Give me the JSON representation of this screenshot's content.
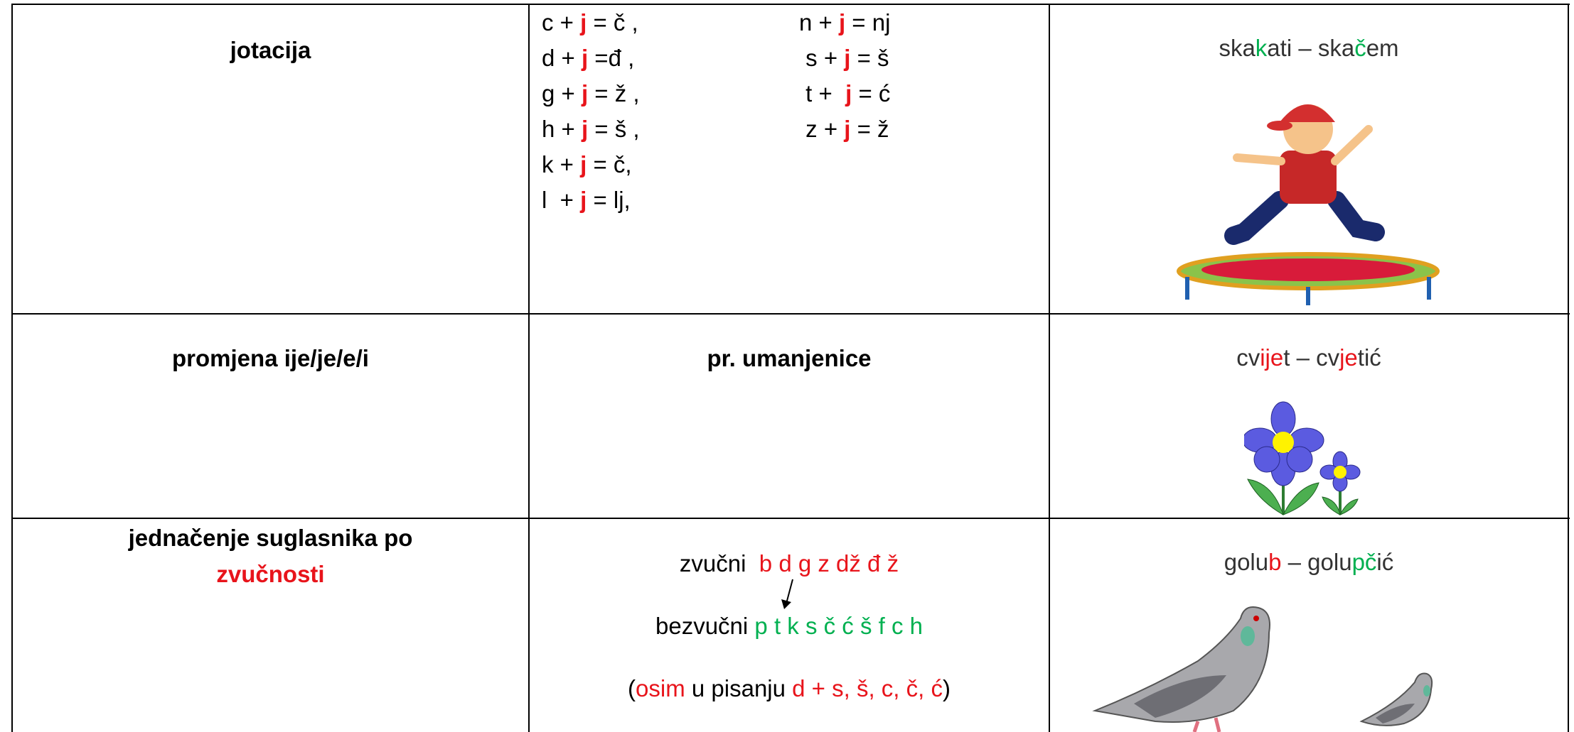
{
  "table": {
    "rows": [
      [
        {
          "lines": [
            {
              "runs": [
                {
                  "text": "jotacija"
                }
              ]
            }
          ]
        },
        {
          "columns": [
            {
              "lines": [
                {
                  "runs": [
                    {
                      "text": "c + "
                    },
                    {
                      "text": "j",
                      "color": "#e8141b",
                      "bold": true
                    },
                    {
                      "text": " = č ,"
                    }
                  ]
                },
                {
                  "runs": [
                    {
                      "text": "d + "
                    },
                    {
                      "text": "j",
                      "color": "#e8141b",
                      "bold": true
                    },
                    {
                      "text": " =đ ,"
                    }
                  ]
                },
                {
                  "runs": [
                    {
                      "text": "g + "
                    },
                    {
                      "text": "j",
                      "color": "#e8141b",
                      "bold": true
                    },
                    {
                      "text": " = ž ,"
                    }
                  ]
                },
                {
                  "runs": [
                    {
                      "text": "h + "
                    },
                    {
                      "text": "j",
                      "color": "#e8141b",
                      "bold": true
                    },
                    {
                      "text": " = š ,"
                    }
                  ]
                },
                {
                  "runs": [
                    {
                      "text": "k + "
                    },
                    {
                      "text": "j",
                      "color": "#e8141b",
                      "bold": true
                    },
                    {
                      "text": " = č,"
                    }
                  ]
                },
                {
                  "runs": [
                    {
                      "text": "l  + "
                    },
                    {
                      "text": "j",
                      "color": "#e8141b",
                      "bold": true
                    },
                    {
                      "text": " = lj,"
                    }
                  ]
                }
              ]
            },
            {
              "lines": [
                {
                  "runs": [
                    {
                      "text": "n + "
                    },
                    {
                      "text": "j",
                      "color": "#e8141b",
                      "bold": true
                    },
                    {
                      "text": " = nj"
                    }
                  ]
                },
                {
                  "runs": [
                    {
                      "text": " s + "
                    },
                    {
                      "text": "j",
                      "color": "#e8141b",
                      "bold": true
                    },
                    {
                      "text": " = š"
                    }
                  ]
                },
                {
                  "runs": [
                    {
                      "text": " t +  "
                    },
                    {
                      "text": "j",
                      "color": "#e8141b",
                      "bold": true
                    },
                    {
                      "text": " = ć"
                    }
                  ]
                },
                {
                  "runs": [
                    {
                      "text": " z + "
                    },
                    {
                      "text": "j",
                      "color": "#e8141b",
                      "bold": true
                    },
                    {
                      "text": " = ž"
                    }
                  ]
                }
              ]
            }
          ]
        },
        {
          "lines": [
            {
              "runs": [
                {
                  "text": "ska"
                },
                {
                  "text": "k",
                  "color": "#00b050"
                },
                {
                  "text": "ati – ska"
                },
                {
                  "text": "č",
                  "color": "#00b050"
                },
                {
                  "text": "em"
                }
              ]
            }
          ]
        }
      ],
      [
        {
          "lines": [
            {
              "runs": [
                {
                  "text": "promjena ije/je/e/i"
                }
              ]
            }
          ]
        },
        {
          "lines": [
            {
              "runs": [
                {
                  "text": "pr. umanjenice"
                }
              ]
            }
          ]
        },
        {
          "lines": [
            {
              "runs": [
                {
                  "text": "cv"
                },
                {
                  "text": "ije",
                  "color": "#e8141b"
                },
                {
                  "text": "t – cv"
                },
                {
                  "text": "je",
                  "color": "#e8141b"
                },
                {
                  "text": "tić"
                }
              ]
            }
          ]
        }
      ],
      [
        {
          "lines": [
            {
              "runs": [
                {
                  "text": "jednačenje suglasnika po"
                }
              ]
            },
            {
              "runs": [
                {
                  "text": "zvučnosti",
                  "color": "#e8141b"
                }
              ]
            }
          ]
        },
        {
          "lines": [
            {
              "runs": [
                {
                  "text": "zvučni  "
                },
                {
                  "text": "b d g z dž đ ž",
                  "color": "#e8141b"
                }
              ]
            },
            {
              "runs": [
                {
                  "text": "bezvučni "
                },
                {
                  "text": "p t k s č ć š f c h",
                  "color": "#00b050"
                }
              ]
            },
            {
              "runs": [
                {
                  "text": "("
                },
                {
                  "text": "osim",
                  "color": "#e8141b"
                },
                {
                  "text": " u pisanju "
                },
                {
                  "text": "d + s, š, c, č, ć",
                  "color": "#e8141b"
                },
                {
                  "text": ")"
                }
              ]
            }
          ]
        },
        {
          "lines": [
            {
              "runs": [
                {
                  "text": "golu"
                },
                {
                  "text": "b",
                  "color": "#e8141b"
                },
                {
                  "text": " – golu"
                },
                {
                  "text": "pč",
                  "color": "#00b050"
                },
                {
                  "text": "ić"
                }
              ]
            }
          ]
        }
      ]
    ]
  }
}
